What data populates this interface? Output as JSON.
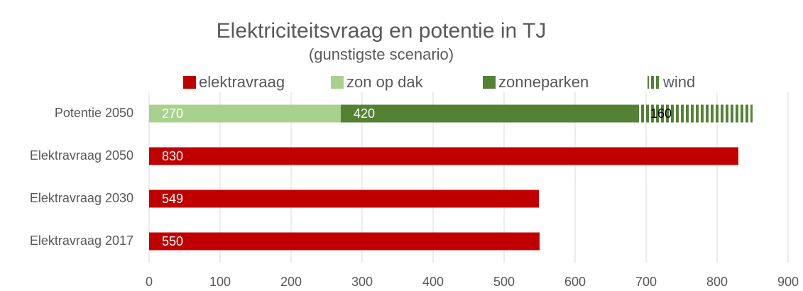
{
  "chart_data": {
    "type": "stacked_barh",
    "title": "Elektriciteitsvraag en potentie in TJ",
    "subtitle": "(gunstigste scenario)",
    "categories": [
      "Potentie 2050",
      "Elektravraag 2050",
      "Elektravraag 2030",
      "Elektravraag 2017"
    ],
    "series": [
      {
        "name": "elektravraag",
        "color": "#c00000",
        "label_color": "#ffffff",
        "values": [
          null,
          830,
          549,
          550
        ]
      },
      {
        "name": "zon op dak",
        "color": "#a9d18e",
        "label_color": "#ffffff",
        "values": [
          270,
          null,
          null,
          null
        ]
      },
      {
        "name": "zonneparken",
        "color": "#548235",
        "label_color": "#ffffff",
        "values": [
          420,
          null,
          null,
          null
        ]
      },
      {
        "name": "wind",
        "color": "#548235",
        "label_color": "#000000",
        "pattern": "vertical-stripes",
        "values": [
          160,
          null,
          null,
          null
        ]
      }
    ],
    "xlim": [
      0,
      900
    ],
    "xticks": [
      0,
      100,
      200,
      300,
      400,
      500,
      600,
      700,
      800,
      900
    ],
    "grid": true,
    "legend": "top"
  }
}
